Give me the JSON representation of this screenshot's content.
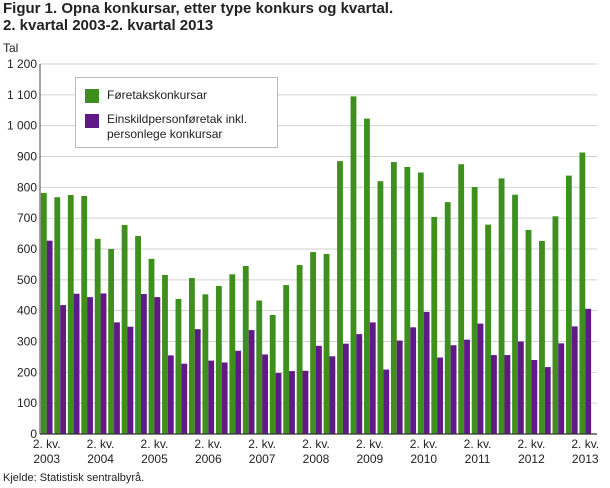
{
  "chart_data": {
    "type": "bar",
    "title": "Figur 1. Opna konkursar, etter type konkurs og kvartal.",
    "subtitle": "2. kvartal 2003-2. kvartal 2013",
    "ylabel": "Tal",
    "ylim": [
      0,
      1200
    ],
    "y_ticks": [
      0,
      100,
      200,
      300,
      400,
      500,
      600,
      700,
      800,
      900,
      1000,
      1100,
      1200
    ],
    "y_tick_labels": [
      "0",
      "100",
      "200",
      "300",
      "400",
      "500",
      "600",
      "700",
      "800",
      "900",
      "1 000",
      "1 100",
      "1 200"
    ],
    "x_tick_labels": [
      {
        "quarter": "2. kv.",
        "year": "2003"
      },
      {
        "quarter": "2. kv.",
        "year": "2004"
      },
      {
        "quarter": "2. kv.",
        "year": "2005"
      },
      {
        "quarter": "2. kv.",
        "year": "2006"
      },
      {
        "quarter": "2. kv.",
        "year": "2007"
      },
      {
        "quarter": "2. kv.",
        "year": "2008"
      },
      {
        "quarter": "2. kv.",
        "year": "2009"
      },
      {
        "quarter": "2. kv.",
        "year": "2010"
      },
      {
        "quarter": "2. kv.",
        "year": "2011"
      },
      {
        "quarter": "2. kv.",
        "year": "2012"
      },
      {
        "quarter": "2. kv.",
        "year": "2013"
      }
    ],
    "series": [
      {
        "name": "Føretakskonkursar",
        "color": "#3f8f1f",
        "values": [
          782,
          768,
          775,
          772,
          633,
          600,
          678,
          642,
          568,
          516,
          438,
          506,
          453,
          480,
          518,
          545,
          433,
          386,
          483,
          548,
          590,
          584,
          885,
          1095,
          1023,
          820,
          882,
          866,
          848,
          704,
          752,
          875,
          801,
          679,
          829,
          776,
          662,
          626,
          706,
          838,
          913
        ]
      },
      {
        "name": "Einskildpersonføretak inkl. personlege konkursar",
        "color": "#5f1a87",
        "values": [
          627,
          418,
          455,
          444,
          456,
          362,
          348,
          454,
          444,
          255,
          228,
          340,
          238,
          232,
          270,
          337,
          258,
          198,
          204,
          205,
          286,
          252,
          293,
          324,
          362,
          209,
          303,
          346,
          396,
          248,
          288,
          306,
          358,
          256,
          256,
          300,
          240,
          217,
          294,
          349,
          406
        ]
      }
    ],
    "legend": "top-left",
    "grid": true
  },
  "source": "Kjelde: Statistisk sentralbyrå."
}
